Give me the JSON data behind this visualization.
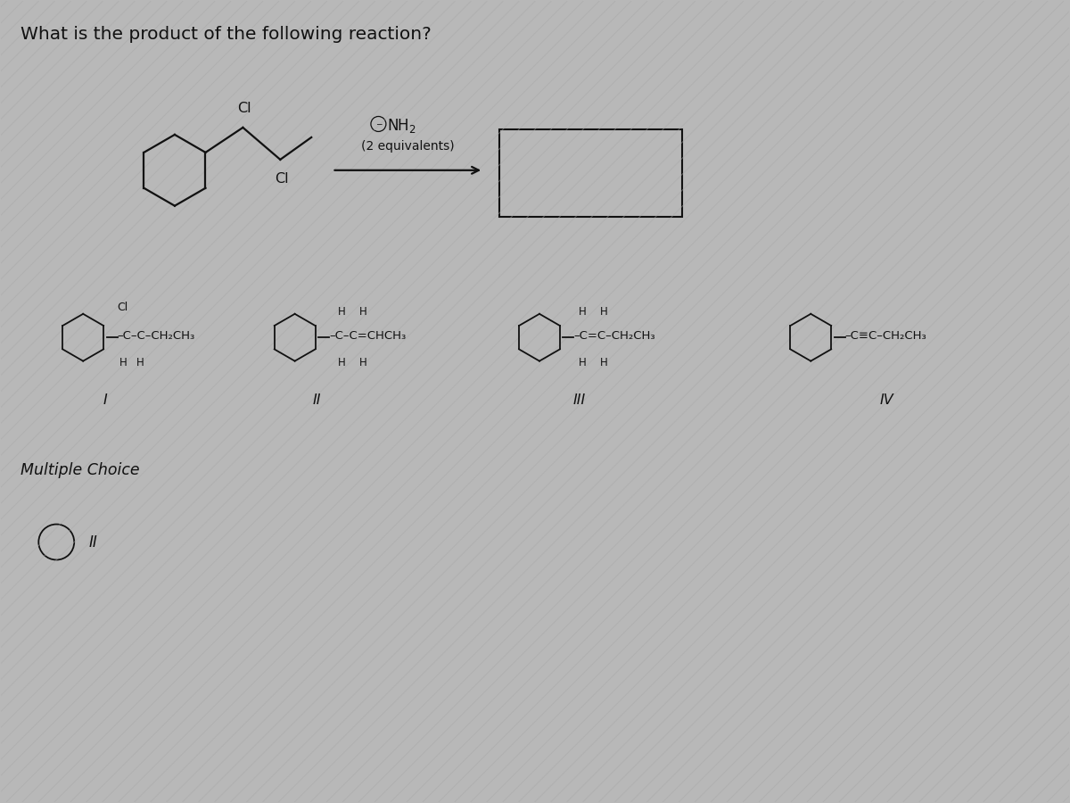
{
  "title": "What is the product of the following reaction?",
  "bg_color": "#b8b8b8",
  "text_color": "#111111",
  "title_fontsize": 14.5,
  "answer_label": "II",
  "multiple_choice_text": "Multiple Choice",
  "stripe_color": "#a8a8a8"
}
